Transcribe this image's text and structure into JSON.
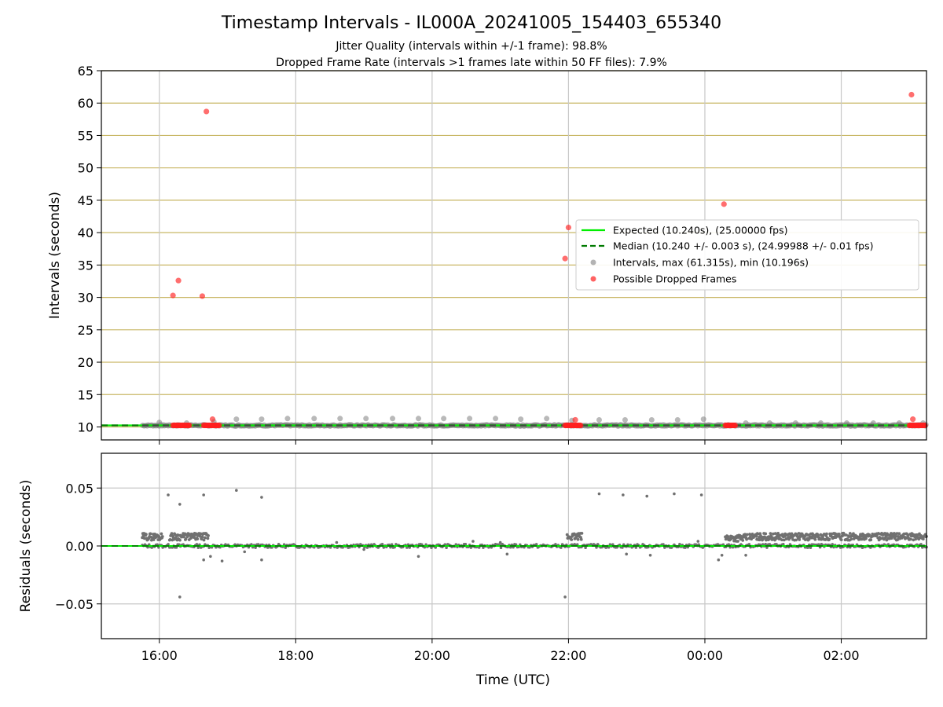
{
  "title": "Timestamp Intervals - IL000A_20241005_154403_655340",
  "subtitle_lines": [
    "Jitter Quality (intervals within +/-1 frame): 98.8%",
    "Dropped Frame Rate (intervals >1 frames late within 50 FF files): 7.9%"
  ],
  "colors": {
    "expected": "#00ee00",
    "median": "#007a00",
    "intervals": "#808080",
    "dropped": "#ff2020",
    "residuals": "#707070",
    "hgrid_top": "#c9b766",
    "grid": "#c8c8c8"
  },
  "chart_data": [
    {
      "type": "scatter",
      "panel": "intervals",
      "title": "Timestamp Intervals - IL000A_20241005_154403_655340",
      "xlabel": "",
      "ylabel": "Intervals (seconds)",
      "xlim_hours": [
        15.15,
        27.25
      ],
      "ylim": [
        8,
        65
      ],
      "yticks": [
        10,
        15,
        20,
        25,
        30,
        35,
        40,
        45,
        50,
        55,
        60,
        65
      ],
      "xticks": [
        {
          "hour": 16,
          "label": "16:00"
        },
        {
          "hour": 18,
          "label": "18:00"
        },
        {
          "hour": 20,
          "label": "20:00"
        },
        {
          "hour": 22,
          "label": "22:00"
        },
        {
          "hour": 24,
          "label": "00:00"
        },
        {
          "hour": 26,
          "label": "02:00"
        }
      ],
      "grid": true,
      "legend_position": "center-right",
      "legend": [
        {
          "label": "Expected (10.240s), (25.00000 fps)",
          "kind": "line"
        },
        {
          "label": "Median (10.240 +/- 0.003 s), (24.99988 +/- 0.01 fps)",
          "kind": "dashed"
        },
        {
          "label": "Intervals, max (61.315s), min (10.196s)",
          "kind": "dot-gray"
        },
        {
          "label": "Possible Dropped Frames",
          "kind": "dot-red"
        }
      ],
      "expected": 10.24,
      "median": 10.24,
      "interval_range_hours": [
        15.75,
        27.25
      ],
      "interval_points": [
        [
          16.0,
          10.7
        ],
        [
          16.4,
          10.6
        ],
        [
          16.8,
          10.8
        ],
        [
          17.13,
          11.2
        ],
        [
          17.5,
          11.2
        ],
        [
          17.88,
          11.3
        ],
        [
          18.27,
          11.3
        ],
        [
          18.65,
          11.3
        ],
        [
          19.03,
          11.3
        ],
        [
          19.42,
          11.3
        ],
        [
          19.8,
          11.3
        ],
        [
          20.17,
          11.3
        ],
        [
          20.55,
          11.3
        ],
        [
          20.93,
          11.3
        ],
        [
          21.3,
          11.2
        ],
        [
          21.68,
          11.3
        ],
        [
          22.05,
          11.0
        ],
        [
          22.45,
          11.1
        ],
        [
          22.83,
          11.1
        ],
        [
          23.22,
          11.1
        ],
        [
          23.6,
          11.1
        ],
        [
          23.98,
          11.2
        ],
        [
          24.6,
          10.6
        ],
        [
          24.95,
          10.6
        ],
        [
          25.33,
          10.6
        ],
        [
          25.7,
          10.6
        ],
        [
          26.08,
          10.6
        ],
        [
          26.47,
          10.6
        ],
        [
          26.85,
          10.6
        ],
        [
          27.2,
          10.6
        ]
      ],
      "dropped_points": [
        [
          16.2,
          30.3
        ],
        [
          16.28,
          32.6
        ],
        [
          16.63,
          30.2
        ],
        [
          16.69,
          58.7
        ],
        [
          16.78,
          11.2
        ],
        [
          21.95,
          36.0
        ],
        [
          22.0,
          40.8
        ],
        [
          22.1,
          11.1
        ],
        [
          24.28,
          44.4
        ],
        [
          27.03,
          61.3
        ],
        [
          27.05,
          11.2
        ]
      ],
      "dropped_clusters": [
        {
          "from": 16.2,
          "to": 16.45,
          "value": 10.24
        },
        {
          "from": 16.65,
          "to": 16.88,
          "value": 10.24
        },
        {
          "from": 21.95,
          "to": 22.18,
          "value": 10.24
        },
        {
          "from": 24.3,
          "to": 24.45,
          "value": 10.24
        },
        {
          "from": 27.0,
          "to": 27.23,
          "value": 10.24
        }
      ]
    },
    {
      "type": "scatter",
      "panel": "residuals",
      "xlabel": "Time (UTC)",
      "ylabel": "Residuals (seconds)",
      "xlim_hours": [
        15.15,
        27.25
      ],
      "ylim": [
        -0.08,
        0.08
      ],
      "yticks": [
        {
          "value": 0.05,
          "label": "0.05"
        },
        {
          "value": 0.0,
          "label": "0.00"
        },
        {
          "value": -0.05,
          "label": "−0.05"
        }
      ],
      "grid": true,
      "zero_line": 0.0,
      "outliers": [
        [
          16.13,
          0.044
        ],
        [
          16.3,
          0.036
        ],
        [
          16.3,
          -0.044
        ],
        [
          16.65,
          0.044
        ],
        [
          16.92,
          -0.013
        ],
        [
          17.13,
          0.048
        ],
        [
          17.5,
          0.042
        ],
        [
          17.5,
          -0.012
        ],
        [
          17.25,
          -0.005
        ],
        [
          16.65,
          -0.012
        ],
        [
          16.75,
          -0.009
        ],
        [
          21.95,
          -0.044
        ],
        [
          22.45,
          0.045
        ],
        [
          22.8,
          0.044
        ],
        [
          23.15,
          0.043
        ],
        [
          23.55,
          0.045
        ],
        [
          23.95,
          0.044
        ],
        [
          19.8,
          -0.009
        ],
        [
          21.1,
          -0.007
        ],
        [
          22.85,
          -0.007
        ],
        [
          23.2,
          -0.008
        ],
        [
          24.2,
          -0.012
        ],
        [
          24.25,
          -0.008
        ],
        [
          24.6,
          -0.008
        ],
        [
          19.0,
          -0.003
        ],
        [
          18.6,
          0.003
        ],
        [
          20.6,
          0.004
        ],
        [
          21.0,
          0.003
        ],
        [
          23.9,
          0.004
        ]
      ],
      "bands": [
        {
          "from": 15.75,
          "to": 16.05,
          "value": 0.008
        },
        {
          "from": 16.15,
          "to": 16.72,
          "value": 0.008
        },
        {
          "from": 21.98,
          "to": 22.2,
          "value": 0.008
        },
        {
          "from": 24.3,
          "to": 24.62,
          "value": 0.007
        },
        {
          "from": 24.65,
          "to": 27.25,
          "value": 0.008
        }
      ]
    }
  ],
  "axes": {
    "x_label": "Time (UTC)",
    "top_y_label": "Intervals (seconds)",
    "bottom_y_label": "Residuals (seconds)"
  }
}
